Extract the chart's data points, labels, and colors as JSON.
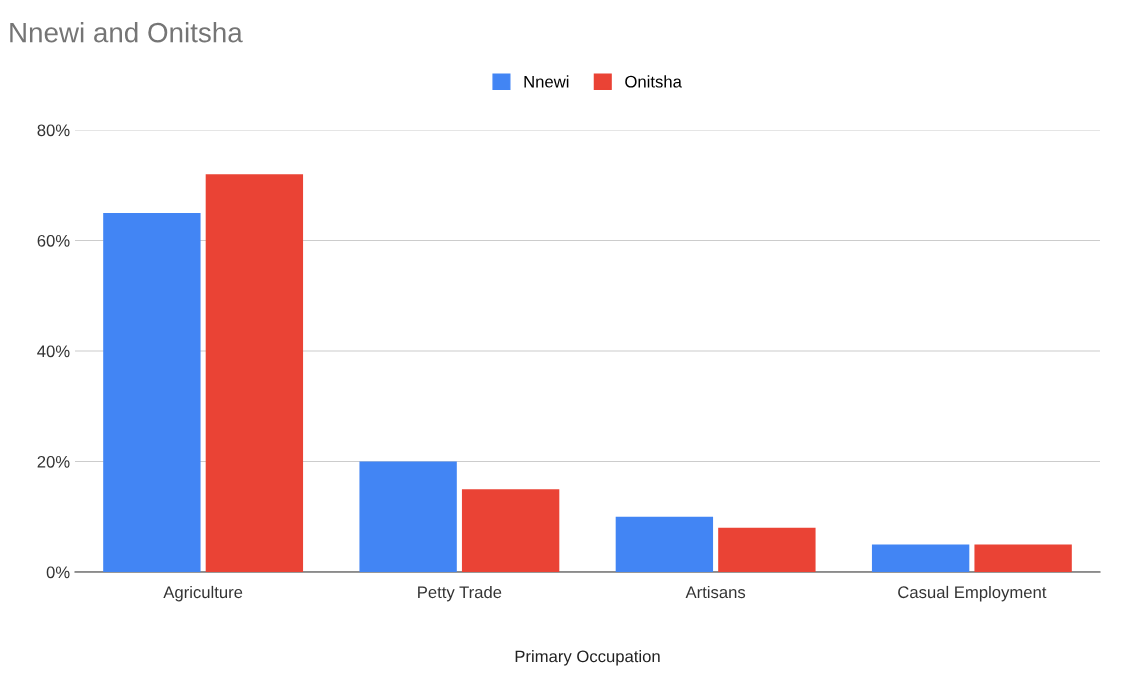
{
  "chart_data": {
    "type": "bar",
    "title": "Nnewi and Onitsha",
    "xlabel": "Primary Occupation",
    "categories": [
      "Agriculture",
      "Petty Trade",
      "Artisans",
      "Casual Employment"
    ],
    "series": [
      {
        "name": "Nnewi",
        "color": "#4285f4",
        "values": [
          65,
          20,
          10,
          5
        ]
      },
      {
        "name": "Onitsha",
        "color": "#ea4335",
        "values": [
          72,
          15,
          8,
          5
        ]
      }
    ],
    "ylim": [
      0,
      80
    ],
    "yticks": [
      {
        "value": 0,
        "label": "0%"
      },
      {
        "value": 20,
        "label": "20%"
      },
      {
        "value": 40,
        "label": "40%"
      },
      {
        "value": 60,
        "label": "60%"
      },
      {
        "value": 80,
        "label": "80%"
      }
    ],
    "grid": "y",
    "legend": "top"
  }
}
